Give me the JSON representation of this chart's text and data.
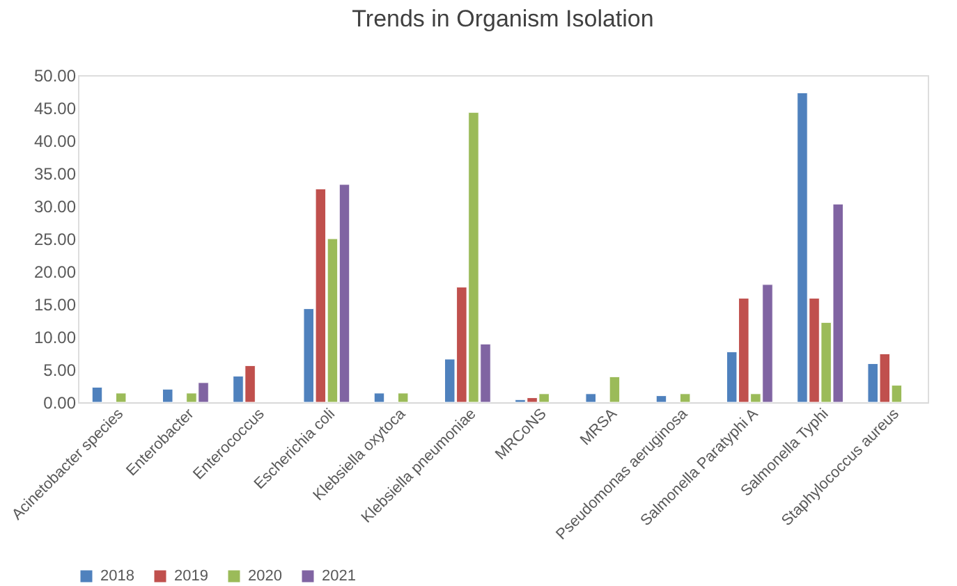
{
  "chart_data": {
    "type": "bar",
    "title": "Trends in Organism Isolation",
    "categories": [
      "Acinetobacter species",
      "Enterobacter",
      "Enterococcus",
      "Escherichia coli",
      "Klebsiella oxytoca",
      "Klebsiella pneumoniae",
      "MRCoNS",
      "MRSA",
      "Pseudomonas aeruginosa",
      "Salmonella Paratyphi A",
      "Salmonella Typhi",
      "Staphylococcus aureus"
    ],
    "series": [
      {
        "name": "2018",
        "color": "#4f81bd",
        "values": [
          2.3,
          2.0,
          4.0,
          14.3,
          1.4,
          6.6,
          0.4,
          1.3,
          1.0,
          7.7,
          47.3,
          5.9
        ]
      },
      {
        "name": "2019",
        "color": "#c0504d",
        "values": [
          null,
          null,
          5.6,
          32.6,
          null,
          17.6,
          0.7,
          null,
          null,
          15.9,
          15.9,
          7.4
        ]
      },
      {
        "name": "2020",
        "color": "#9bbb59",
        "values": [
          1.4,
          1.4,
          null,
          25.0,
          1.4,
          44.3,
          1.3,
          3.9,
          1.3,
          1.3,
          12.2,
          2.6
        ]
      },
      {
        "name": "2021",
        "color": "#8064a2",
        "values": [
          null,
          3.0,
          null,
          33.3,
          null,
          8.9,
          null,
          null,
          null,
          18.0,
          30.3,
          null
        ]
      }
    ],
    "ylim": [
      0,
      50
    ],
    "yticks": [
      {
        "value": 0,
        "label": "0.00"
      },
      {
        "value": 5,
        "label": "5.00"
      },
      {
        "value": 10,
        "label": "10.00"
      },
      {
        "value": 15,
        "label": "15.00"
      },
      {
        "value": 20,
        "label": "20.00"
      },
      {
        "value": 25,
        "label": "25.00"
      },
      {
        "value": 30,
        "label": "30.00"
      },
      {
        "value": 35,
        "label": "35.00"
      },
      {
        "value": 40,
        "label": "40.00"
      },
      {
        "value": 45,
        "label": "45.00"
      },
      {
        "value": 50,
        "label": "50.00"
      }
    ],
    "grid": false,
    "legend": "bottom"
  }
}
